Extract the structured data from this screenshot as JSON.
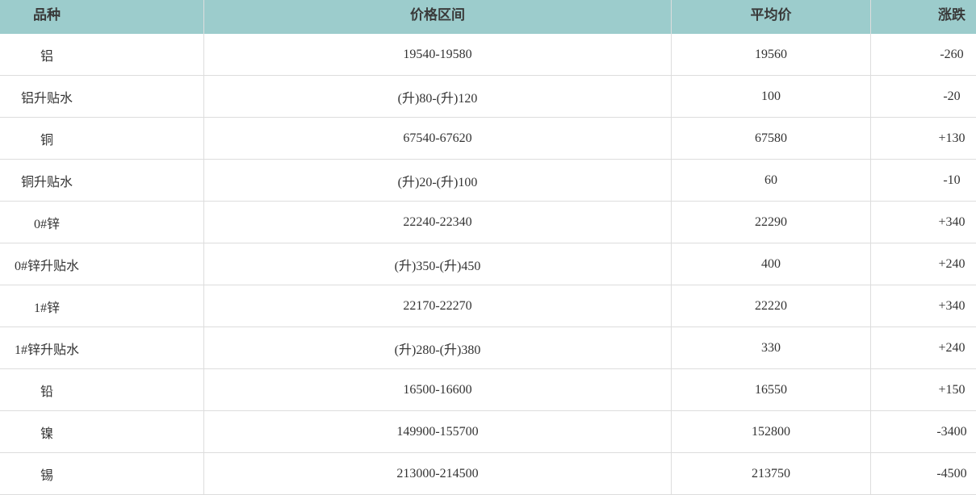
{
  "headers": [
    "品种",
    "价格区间",
    "平均价",
    "涨跌"
  ],
  "rows": [
    {
      "name": "铝",
      "range": "19540-19580",
      "avg": "19560",
      "change": "-260"
    },
    {
      "name": "铝升贴水",
      "range": "(升)80-(升)120",
      "avg": "100",
      "change": "-20"
    },
    {
      "name": "铜",
      "range": "67540-67620",
      "avg": "67580",
      "change": "+130"
    },
    {
      "name": "铜升贴水",
      "range": "(升)20-(升)100",
      "avg": "60",
      "change": "-10"
    },
    {
      "name": "0#锌",
      "range": "22240-22340",
      "avg": "22290",
      "change": "+340"
    },
    {
      "name": "0#锌升贴水",
      "range": "(升)350-(升)450",
      "avg": "400",
      "change": "+240"
    },
    {
      "name": "1#锌",
      "range": "22170-22270",
      "avg": "22220",
      "change": "+340"
    },
    {
      "name": "1#锌升贴水",
      "range": "(升)280-(升)380",
      "avg": "330",
      "change": "+240"
    },
    {
      "name": "铅",
      "range": "16500-16600",
      "avg": "16550",
      "change": "+150"
    },
    {
      "name": "镍",
      "range": "149900-155700",
      "avg": "152800",
      "change": "-3400"
    },
    {
      "name": "锡",
      "range": "213000-214500",
      "avg": "213750",
      "change": "-4500"
    }
  ],
  "colors": {
    "header_bg": "#9ccccc",
    "border": "#dddddd"
  }
}
